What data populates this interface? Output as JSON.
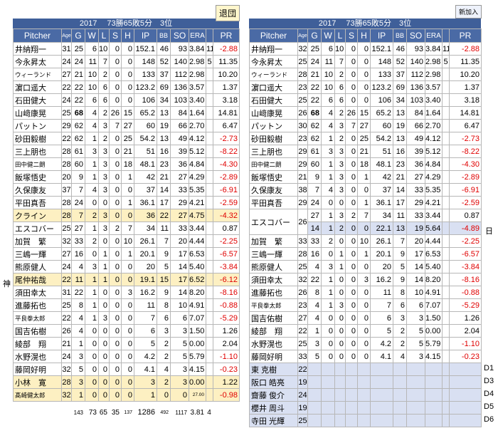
{
  "left": {
    "tag": "退団",
    "header": "2017　 73勝65敗5分　3位",
    "columns": [
      "Pitcher",
      "Age",
      "G",
      "W",
      "L",
      "S",
      "H",
      "IP",
      "BB",
      "SO",
      "ERA",
      "PR"
    ],
    "side_mark": "神",
    "rows": [
      {
        "name": "井納翔一",
        "age": "31",
        "g": "25",
        "w": "6",
        "l": "10",
        "s": "0",
        "h": "0",
        "ip": "152.1",
        "bb": "46",
        "so": "93",
        "era": "3.84",
        "x": "11",
        "pr": "-2.88",
        "neg": true
      },
      {
        "name": "今永昇太",
        "age": "24",
        "g": "24",
        "w": "11",
        "l": "7",
        "s": "0",
        "h": "0",
        "ip": "148",
        "bb": "52",
        "so": "140",
        "era": "2.98",
        "x": "5",
        "pr": "11.35"
      },
      {
        "name": "ウィーランド",
        "age": "27",
        "g": "21",
        "w": "10",
        "l": "2",
        "s": "0",
        "h": "0",
        "ip": "133",
        "bb": "37",
        "so": "112",
        "era": "2.98",
        "x": "",
        "pr": "10.20",
        "sm": true
      },
      {
        "name": "濵口遥大",
        "age": "22",
        "g": "22",
        "w": "10",
        "l": "6",
        "s": "0",
        "h": "0",
        "ip": "123.2",
        "bb": "69",
        "so": "136",
        "era": "3.57",
        "x": "",
        "pr": "1.37"
      },
      {
        "name": "石田健大",
        "age": "24",
        "g": "22",
        "w": "6",
        "l": "6",
        "s": "0",
        "h": "0",
        "ip": "106",
        "bb": "34",
        "so": "103",
        "era": "3.40",
        "x": "",
        "pr": "3.18"
      },
      {
        "name": "山﨑康晃",
        "age": "25",
        "g": "68",
        "w": "4",
        "l": "2",
        "s": "26",
        "h": "15",
        "ip": "65.2",
        "bb": "13",
        "so": "84",
        "era": "1.64",
        "x": "",
        "pr": "14.81",
        "gbold": true
      },
      {
        "name": "パットン",
        "age": "29",
        "g": "62",
        "w": "4",
        "l": "3",
        "s": "7",
        "h": "27",
        "ip": "60",
        "bb": "19",
        "so": "66",
        "era": "2.70",
        "x": "",
        "pr": "6.47"
      },
      {
        "name": "砂田毅樹",
        "age": "22",
        "g": "62",
        "w": "1",
        "l": "2",
        "s": "0",
        "h": "25",
        "ip": "54.2",
        "bb": "13",
        "so": "49",
        "era": "4.12",
        "x": "",
        "pr": "-2.73",
        "neg": true
      },
      {
        "name": "三上朋也",
        "age": "28",
        "g": "61",
        "w": "3",
        "l": "3",
        "s": "0",
        "h": "21",
        "ip": "51",
        "bb": "16",
        "so": "39",
        "era": "5.12",
        "x": "",
        "pr": "-8.22",
        "neg": true
      },
      {
        "name": "田中健二朗",
        "age": "28",
        "g": "60",
        "w": "1",
        "l": "3",
        "s": "0",
        "h": "18",
        "ip": "48.1",
        "bb": "23",
        "so": "36",
        "era": "4.84",
        "x": "",
        "pr": "-4.30",
        "neg": true,
        "sm": true
      },
      {
        "name": "飯塚悟史",
        "age": "20",
        "g": "9",
        "w": "1",
        "l": "3",
        "s": "0",
        "h": "1",
        "ip": "42",
        "bb": "21",
        "so": "27",
        "era": "4.29",
        "x": "",
        "pr": "-2.89",
        "neg": true
      },
      {
        "name": "久保康友",
        "age": "37",
        "g": "7",
        "w": "4",
        "l": "3",
        "s": "0",
        "h": "0",
        "ip": "37",
        "bb": "14",
        "so": "33",
        "era": "5.35",
        "x": "",
        "pr": "-6.91",
        "neg": true
      },
      {
        "name": "平田真吾",
        "age": "28",
        "g": "24",
        "w": "0",
        "l": "0",
        "s": "0",
        "h": "1",
        "ip": "36.1",
        "bb": "17",
        "so": "29",
        "era": "4.21",
        "x": "",
        "pr": "-2.59",
        "neg": true
      },
      {
        "name": "クライン",
        "age": "28",
        "g": "7",
        "w": "2",
        "l": "3",
        "s": "0",
        "h": "0",
        "ip": "36",
        "bb": "22",
        "so": "27",
        "era": "4.75",
        "x": "",
        "pr": "-4.32",
        "neg": true,
        "hl": true
      },
      {
        "name": "エスコバー",
        "age": "25",
        "g": "27",
        "w": "1",
        "l": "3",
        "s": "2",
        "h": "7",
        "ip": "34",
        "bb": "11",
        "so": "33",
        "era": "3.44",
        "x": "",
        "pr": "0.87"
      },
      {
        "name": "加賀　繁",
        "age": "32",
        "g": "33",
        "w": "2",
        "l": "0",
        "s": "0",
        "h": "10",
        "ip": "26.1",
        "bb": "7",
        "so": "20",
        "era": "4.44",
        "x": "",
        "pr": "-2.25",
        "neg": true
      },
      {
        "name": "三嶋一輝",
        "age": "27",
        "g": "16",
        "w": "0",
        "l": "1",
        "s": "0",
        "h": "1",
        "ip": "20.1",
        "bb": "9",
        "so": "17",
        "era": "6.53",
        "x": "",
        "pr": "-6.57",
        "neg": true
      },
      {
        "name": "熊原健人",
        "age": "24",
        "g": "4",
        "w": "3",
        "l": "1",
        "s": "0",
        "h": "0",
        "ip": "20",
        "bb": "5",
        "so": "14",
        "era": "5.40",
        "x": "",
        "pr": "-3.84",
        "neg": true
      },
      {
        "name": "尾仲祐哉",
        "age": "22",
        "g": "11",
        "w": "1",
        "l": "1",
        "s": "0",
        "h": "0",
        "ip": "19.1",
        "bb": "15",
        "so": "17",
        "era": "6.52",
        "x": "",
        "pr": "-6.12",
        "neg": true,
        "hl": true
      },
      {
        "name": "須田幸太",
        "age": "31",
        "g": "22",
        "w": "1",
        "l": "0",
        "s": "0",
        "h": "3",
        "ip": "16.2",
        "bb": "9",
        "so": "14",
        "era": "8.20",
        "x": "",
        "pr": "-8.16",
        "neg": true
      },
      {
        "name": "進藤拓也",
        "age": "25",
        "g": "8",
        "w": "1",
        "l": "0",
        "s": "0",
        "h": "0",
        "ip": "11",
        "bb": "8",
        "so": "10",
        "era": "4.91",
        "x": "",
        "pr": "-0.88",
        "neg": true
      },
      {
        "name": "平良拳太郎",
        "age": "22",
        "g": "4",
        "w": "1",
        "l": "3",
        "s": "0",
        "h": "0",
        "ip": "7",
        "bb": "6",
        "so": "6",
        "era": "7.07",
        "x": "",
        "pr": "-5.29",
        "neg": true,
        "sm": true
      },
      {
        "name": "国吉佑樹",
        "age": "26",
        "g": "4",
        "w": "0",
        "l": "0",
        "s": "0",
        "h": "0",
        "ip": "6",
        "bb": "3",
        "so": "3",
        "era": "1.50",
        "x": "",
        "pr": "1.26"
      },
      {
        "name": "綾部　翔",
        "age": "21",
        "g": "1",
        "w": "0",
        "l": "0",
        "s": "0",
        "h": "0",
        "ip": "5",
        "bb": "2",
        "so": "5",
        "era": "0.00",
        "x": "",
        "pr": "2.04"
      },
      {
        "name": "水野滉也",
        "age": "24",
        "g": "3",
        "w": "0",
        "l": "0",
        "s": "0",
        "h": "0",
        "ip": "4.2",
        "bb": "2",
        "so": "5",
        "era": "5.79",
        "x": "",
        "pr": "-1.10",
        "neg": true
      },
      {
        "name": "藤岡好明",
        "age": "32",
        "g": "5",
        "w": "0",
        "l": "0",
        "s": "0",
        "h": "0",
        "ip": "4.1",
        "bb": "4",
        "so": "3",
        "era": "4.15",
        "x": "",
        "pr": "-0.23",
        "neg": true
      },
      {
        "name": "小林　寛",
        "age": "28",
        "g": "3",
        "w": "0",
        "l": "0",
        "s": "0",
        "h": "0",
        "ip": "3",
        "bb": "2",
        "so": "3",
        "era": "0.00",
        "x": "",
        "pr": "1.22",
        "hl": true
      },
      {
        "name": "髙崎健太郎",
        "age": "32",
        "g": "1",
        "w": "0",
        "l": "0",
        "s": "0",
        "h": "0",
        "ip": "1",
        "bb": "0",
        "so": "0",
        "era": "27.00",
        "x": "",
        "pr": "-0.98",
        "neg": true,
        "hl": true,
        "sm": true,
        "erasm": true
      }
    ],
    "totals": {
      "g": "143",
      "w": "73",
      "l": "65",
      "s": "35",
      "h": "137",
      "ip": "1286",
      "bb": "492",
      "so": "1117",
      "era": "3.81",
      "x": "4"
    }
  },
  "right": {
    "tag": "新加入",
    "header": "2017　 73勝65敗5分　3位",
    "columns": [
      "Pitcher",
      "Age",
      "G",
      "W",
      "L",
      "S",
      "H",
      "IP",
      "BB",
      "SO",
      "ERA",
      "PR"
    ],
    "rows": [
      {
        "name": "井納翔一",
        "age": "32",
        "g": "25",
        "w": "6",
        "l": "10",
        "s": "0",
        "h": "0",
        "ip": "152.1",
        "bb": "46",
        "so": "93",
        "era": "3.84",
        "x": "11",
        "pr": "-2.88",
        "neg": true
      },
      {
        "name": "今永昇太",
        "age": "25",
        "g": "24",
        "w": "11",
        "l": "7",
        "s": "0",
        "h": "0",
        "ip": "148",
        "bb": "52",
        "so": "140",
        "era": "2.98",
        "x": "5",
        "pr": "11.35"
      },
      {
        "name": "ウィーランド",
        "age": "28",
        "g": "21",
        "w": "10",
        "l": "2",
        "s": "0",
        "h": "0",
        "ip": "133",
        "bb": "37",
        "so": "112",
        "era": "2.98",
        "x": "",
        "pr": "10.20",
        "sm": true
      },
      {
        "name": "濵口遥大",
        "age": "23",
        "g": "22",
        "w": "10",
        "l": "6",
        "s": "0",
        "h": "0",
        "ip": "123.2",
        "bb": "69",
        "so": "136",
        "era": "3.57",
        "x": "",
        "pr": "1.37"
      },
      {
        "name": "石田健大",
        "age": "25",
        "g": "22",
        "w": "6",
        "l": "6",
        "s": "0",
        "h": "0",
        "ip": "106",
        "bb": "34",
        "so": "103",
        "era": "3.40",
        "x": "",
        "pr": "3.18"
      },
      {
        "name": "山﨑康晃",
        "age": "26",
        "g": "68",
        "w": "4",
        "l": "2",
        "s": "26",
        "h": "15",
        "ip": "65.2",
        "bb": "13",
        "so": "84",
        "era": "1.64",
        "x": "",
        "pr": "14.81",
        "gbold": true
      },
      {
        "name": "パットン",
        "age": "30",
        "g": "62",
        "w": "4",
        "l": "3",
        "s": "7",
        "h": "27",
        "ip": "60",
        "bb": "19",
        "so": "66",
        "era": "2.70",
        "x": "",
        "pr": "6.47"
      },
      {
        "name": "砂田毅樹",
        "age": "23",
        "g": "62",
        "w": "1",
        "l": "2",
        "s": "0",
        "h": "25",
        "ip": "54.2",
        "bb": "13",
        "so": "49",
        "era": "4.12",
        "x": "",
        "pr": "-2.73",
        "neg": true
      },
      {
        "name": "三上朋也",
        "age": "29",
        "g": "61",
        "w": "3",
        "l": "3",
        "s": "0",
        "h": "21",
        "ip": "51",
        "bb": "16",
        "so": "39",
        "era": "5.12",
        "x": "",
        "pr": "-8.22",
        "neg": true
      },
      {
        "name": "田中健二朗",
        "age": "29",
        "g": "60",
        "w": "1",
        "l": "3",
        "s": "0",
        "h": "18",
        "ip": "48.1",
        "bb": "23",
        "so": "36",
        "era": "4.84",
        "x": "",
        "pr": "-4.30",
        "neg": true,
        "sm": true
      },
      {
        "name": "飯塚悟史",
        "age": "21",
        "g": "9",
        "w": "1",
        "l": "3",
        "s": "0",
        "h": "1",
        "ip": "42",
        "bb": "21",
        "so": "27",
        "era": "4.29",
        "x": "",
        "pr": "-2.89",
        "neg": true
      },
      {
        "name": "久保康友",
        "age": "38",
        "g": "7",
        "w": "4",
        "l": "3",
        "s": "0",
        "h": "0",
        "ip": "37",
        "bb": "14",
        "so": "33",
        "era": "5.35",
        "x": "",
        "pr": "-6.91",
        "neg": true
      },
      {
        "name": "平田真吾",
        "age": "29",
        "g": "24",
        "w": "0",
        "l": "0",
        "s": "0",
        "h": "1",
        "ip": "36.1",
        "bb": "17",
        "so": "29",
        "era": "4.21",
        "x": "",
        "pr": "-2.59",
        "neg": true
      }
    ],
    "escobar": {
      "name": "エスコバー",
      "age": "26",
      "a": {
        "g": "27",
        "w": "1",
        "l": "3",
        "s": "2",
        "h": "7",
        "ip": "34",
        "bb": "11",
        "so": "33",
        "era": "3.44",
        "pr": "0.87"
      },
      "b": {
        "g": "14",
        "w": "1",
        "l": "2",
        "s": "0",
        "h": "0",
        "ip": "22.1",
        "bb": "13",
        "so": "19",
        "era": "5.64",
        "pr": "-4.89"
      },
      "side": "日"
    },
    "rows2": [
      {
        "name": "加賀　繁",
        "age": "33",
        "g": "33",
        "w": "2",
        "l": "0",
        "s": "0",
        "h": "10",
        "ip": "26.1",
        "bb": "7",
        "so": "20",
        "era": "4.44",
        "x": "",
        "pr": "-2.25",
        "neg": true
      },
      {
        "name": "三嶋一輝",
        "age": "28",
        "g": "16",
        "w": "0",
        "l": "1",
        "s": "0",
        "h": "1",
        "ip": "20.1",
        "bb": "9",
        "so": "17",
        "era": "6.53",
        "x": "",
        "pr": "-6.57",
        "neg": true
      },
      {
        "name": "熊原健人",
        "age": "25",
        "g": "4",
        "w": "3",
        "l": "1",
        "s": "0",
        "h": "0",
        "ip": "20",
        "bb": "5",
        "so": "14",
        "era": "5.40",
        "x": "",
        "pr": "-3.84",
        "neg": true
      },
      {
        "name": "須田幸太",
        "age": "32",
        "g": "22",
        "w": "1",
        "l": "0",
        "s": "0",
        "h": "3",
        "ip": "16.2",
        "bb": "9",
        "so": "14",
        "era": "8.20",
        "x": "",
        "pr": "-8.16",
        "neg": true
      },
      {
        "name": "進藤拓也",
        "age": "26",
        "g": "8",
        "w": "1",
        "l": "0",
        "s": "0",
        "h": "0",
        "ip": "11",
        "bb": "8",
        "so": "10",
        "era": "4.91",
        "x": "",
        "pr": "-0.88",
        "neg": true
      },
      {
        "name": "平良拳太郎",
        "age": "23",
        "g": "4",
        "w": "1",
        "l": "3",
        "s": "0",
        "h": "0",
        "ip": "7",
        "bb": "6",
        "so": "6",
        "era": "7.07",
        "x": "",
        "pr": "-5.29",
        "neg": true,
        "sm": true
      },
      {
        "name": "国吉佑樹",
        "age": "27",
        "g": "4",
        "w": "0",
        "l": "0",
        "s": "0",
        "h": "0",
        "ip": "6",
        "bb": "3",
        "so": "3",
        "era": "1.50",
        "x": "",
        "pr": "1.26"
      },
      {
        "name": "綾部　翔",
        "age": "22",
        "g": "1",
        "w": "0",
        "l": "0",
        "s": "0",
        "h": "0",
        "ip": "5",
        "bb": "2",
        "so": "5",
        "era": "0.00",
        "x": "",
        "pr": "2.04"
      },
      {
        "name": "水野滉也",
        "age": "25",
        "g": "3",
        "w": "0",
        "l": "0",
        "s": "0",
        "h": "0",
        "ip": "4.2",
        "bb": "2",
        "so": "5",
        "era": "5.79",
        "x": "",
        "pr": "-1.10",
        "neg": true
      },
      {
        "name": "藤岡好明",
        "age": "33",
        "g": "5",
        "w": "0",
        "l": "0",
        "s": "0",
        "h": "0",
        "ip": "4.1",
        "bb": "4",
        "so": "3",
        "era": "4.15",
        "x": "",
        "pr": "-0.23",
        "neg": true
      }
    ],
    "draft": [
      {
        "name": "東 克樹",
        "age": "22",
        "pick": "D1"
      },
      {
        "name": "阪口 皓亮",
        "age": "19",
        "pick": "D3"
      },
      {
        "name": "齋藤 俊介",
        "age": "24",
        "pick": "D4"
      },
      {
        "name": "櫻井 周斗",
        "age": "19",
        "pick": "D5"
      },
      {
        "name": "寺田 光輝",
        "age": "25",
        "pick": "D6"
      }
    ]
  }
}
